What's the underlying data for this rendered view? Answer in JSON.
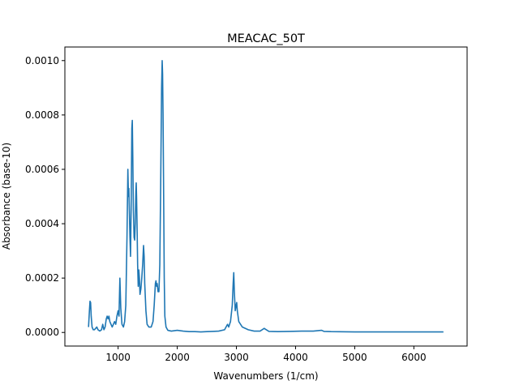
{
  "chart_data": {
    "type": "line",
    "title": "MEACAC_50T",
    "xlabel": "Wavenumbers (1/cm)",
    "ylabel": "Absorbance (base-10)",
    "xlim": [
      100,
      6900
    ],
    "ylim": [
      -5e-05,
      0.00105
    ],
    "xticks": [
      1000,
      2000,
      3000,
      4000,
      5000,
      6000
    ],
    "xtick_labels": [
      "1000",
      "2000",
      "3000",
      "4000",
      "5000",
      "6000"
    ],
    "yticks": [
      0.0,
      0.0002,
      0.0004,
      0.0006,
      0.0008,
      0.001
    ],
    "ytick_labels": [
      "0.0000",
      "0.0002",
      "0.0004",
      "0.0006",
      "0.0008",
      "0.0010"
    ],
    "grid": false,
    "series": [
      {
        "color": "#1f77b4",
        "points": [
          [
            500,
            2e-05
          ],
          [
            515,
            8e-05
          ],
          [
            525,
            0.000115
          ],
          [
            535,
            0.00011
          ],
          [
            545,
            6e-05
          ],
          [
            560,
            2e-05
          ],
          [
            580,
            1e-05
          ],
          [
            600,
            1e-05
          ],
          [
            620,
            1.5e-05
          ],
          [
            640,
            2e-05
          ],
          [
            660,
            1e-05
          ],
          [
            690,
            5e-06
          ],
          [
            720,
            1e-05
          ],
          [
            740,
            3e-05
          ],
          [
            760,
            1e-05
          ],
          [
            780,
            2e-05
          ],
          [
            800,
            5e-05
          ],
          [
            815,
            6e-05
          ],
          [
            830,
            5e-05
          ],
          [
            845,
            6e-05
          ],
          [
            860,
            4e-05
          ],
          [
            880,
            3e-05
          ],
          [
            900,
            2e-05
          ],
          [
            920,
            3e-05
          ],
          [
            940,
            4e-05
          ],
          [
            960,
            3e-05
          ],
          [
            980,
            6e-05
          ],
          [
            1000,
            8e-05
          ],
          [
            1015,
            6e-05
          ],
          [
            1030,
            0.0002
          ],
          [
            1045,
            9e-05
          ],
          [
            1065,
            3e-05
          ],
          [
            1090,
            2e-05
          ],
          [
            1110,
            4e-05
          ],
          [
            1130,
            0.0001
          ],
          [
            1150,
            0.00035
          ],
          [
            1165,
            0.0006
          ],
          [
            1175,
            0.0005
          ],
          [
            1182,
            0.00053
          ],
          [
            1190,
            0.00045
          ],
          [
            1200,
            0.00035
          ],
          [
            1210,
            0.00028
          ],
          [
            1220,
            0.00045
          ],
          [
            1232,
            0.00075
          ],
          [
            1240,
            0.00078
          ],
          [
            1248,
            0.00065
          ],
          [
            1258,
            0.00045
          ],
          [
            1270,
            0.00035
          ],
          [
            1280,
            0.00034
          ],
          [
            1290,
            0.0004
          ],
          [
            1300,
            0.00052
          ],
          [
            1306,
            0.00055
          ],
          [
            1312,
            0.0005
          ],
          [
            1320,
            0.0004
          ],
          [
            1330,
            0.00025
          ],
          [
            1340,
            0.00017
          ],
          [
            1350,
            0.00023
          ],
          [
            1360,
            0.0002
          ],
          [
            1370,
            0.00014
          ],
          [
            1385,
            0.00016
          ],
          [
            1400,
            0.0002
          ],
          [
            1415,
            0.00025
          ],
          [
            1430,
            0.00032
          ],
          [
            1440,
            0.00028
          ],
          [
            1450,
            0.00018
          ],
          [
            1470,
            8e-05
          ],
          [
            1490,
            3e-05
          ],
          [
            1520,
            2e-05
          ],
          [
            1560,
            2e-05
          ],
          [
            1590,
            4e-05
          ],
          [
            1610,
            0.0001
          ],
          [
            1630,
            0.00018
          ],
          [
            1640,
            0.00019
          ],
          [
            1650,
            0.00017
          ],
          [
            1660,
            0.00018
          ],
          [
            1675,
            0.00015
          ],
          [
            1690,
            0.00015
          ],
          [
            1705,
            0.00025
          ],
          [
            1720,
            0.00055
          ],
          [
            1735,
            0.0009
          ],
          [
            1745,
            0.001
          ],
          [
            1752,
            0.00095
          ],
          [
            1760,
            0.0008
          ],
          [
            1770,
            0.0005
          ],
          [
            1780,
            0.0002
          ],
          [
            1790,
            6e-05
          ],
          [
            1810,
            2e-05
          ],
          [
            1840,
            8e-06
          ],
          [
            1900,
            5e-06
          ],
          [
            2000,
            8e-06
          ],
          [
            2100,
            5e-06
          ],
          [
            2200,
            3e-06
          ],
          [
            2300,
            3e-06
          ],
          [
            2400,
            2e-06
          ],
          [
            2500,
            3e-06
          ],
          [
            2600,
            4e-06
          ],
          [
            2700,
            5e-06
          ],
          [
            2800,
            1e-05
          ],
          [
            2850,
            3e-05
          ],
          [
            2870,
            2e-05
          ],
          [
            2900,
            4e-05
          ],
          [
            2930,
            0.0001
          ],
          [
            2945,
            0.00018
          ],
          [
            2955,
            0.00022
          ],
          [
            2965,
            0.00015
          ],
          [
            2980,
            8e-05
          ],
          [
            2995,
            0.0001
          ],
          [
            3005,
            0.00011
          ],
          [
            3015,
            8e-05
          ],
          [
            3040,
            4e-05
          ],
          [
            3100,
            2e-05
          ],
          [
            3200,
            1e-05
          ],
          [
            3300,
            5e-06
          ],
          [
            3400,
            5e-06
          ],
          [
            3470,
            1.5e-05
          ],
          [
            3490,
            1.2e-05
          ],
          [
            3550,
            4e-06
          ],
          [
            3700,
            3e-06
          ],
          [
            3900,
            4e-06
          ],
          [
            4100,
            5e-06
          ],
          [
            4300,
            5e-06
          ],
          [
            4440,
            8e-06
          ],
          [
            4480,
            4e-06
          ],
          [
            4600,
            3e-06
          ],
          [
            5000,
            2e-06
          ],
          [
            5500,
            2e-06
          ],
          [
            6000,
            2e-06
          ],
          [
            6500,
            2e-06
          ]
        ]
      }
    ]
  }
}
